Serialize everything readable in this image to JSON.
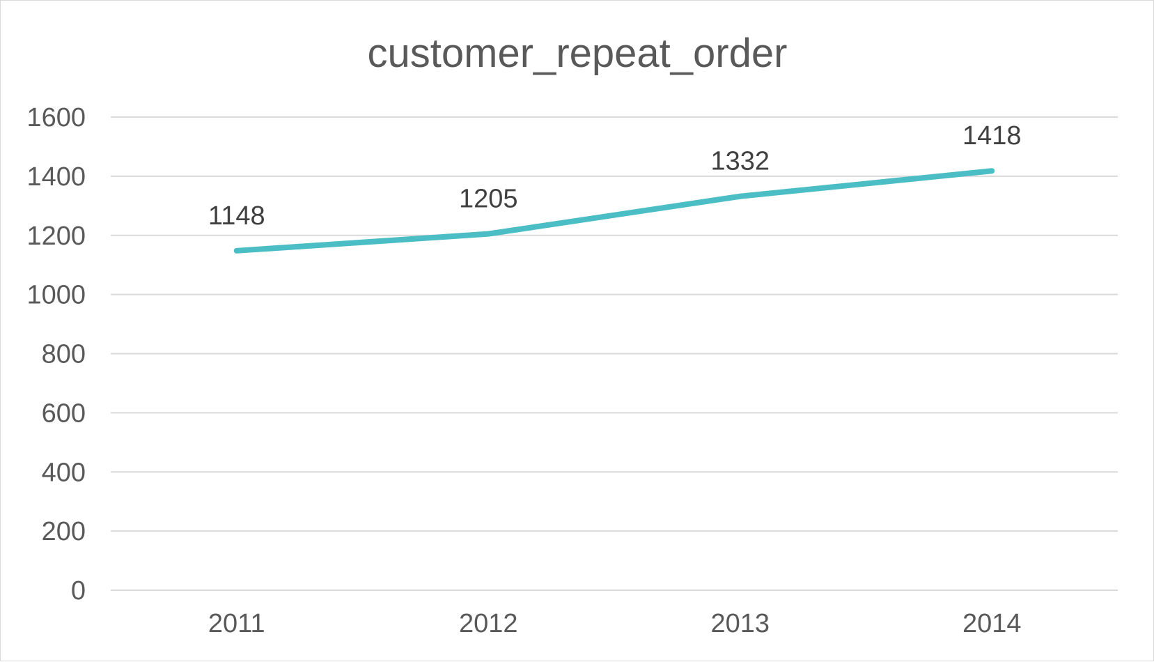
{
  "chart_data": {
    "type": "line",
    "title": "customer_repeat_order",
    "xlabel": "",
    "ylabel": "",
    "categories": [
      "2011",
      "2012",
      "2013",
      "2014"
    ],
    "series": [
      {
        "values": [
          1148,
          1205,
          1332,
          1418
        ],
        "color": "#4bbdc4"
      }
    ],
    "ylim": [
      0,
      1600
    ],
    "y_ticks": [
      0,
      200,
      400,
      600,
      800,
      1000,
      1200,
      1400,
      1600
    ],
    "data_labels": [
      "1148",
      "1205",
      "1332",
      "1418"
    ],
    "grid": true,
    "legend": "none"
  }
}
